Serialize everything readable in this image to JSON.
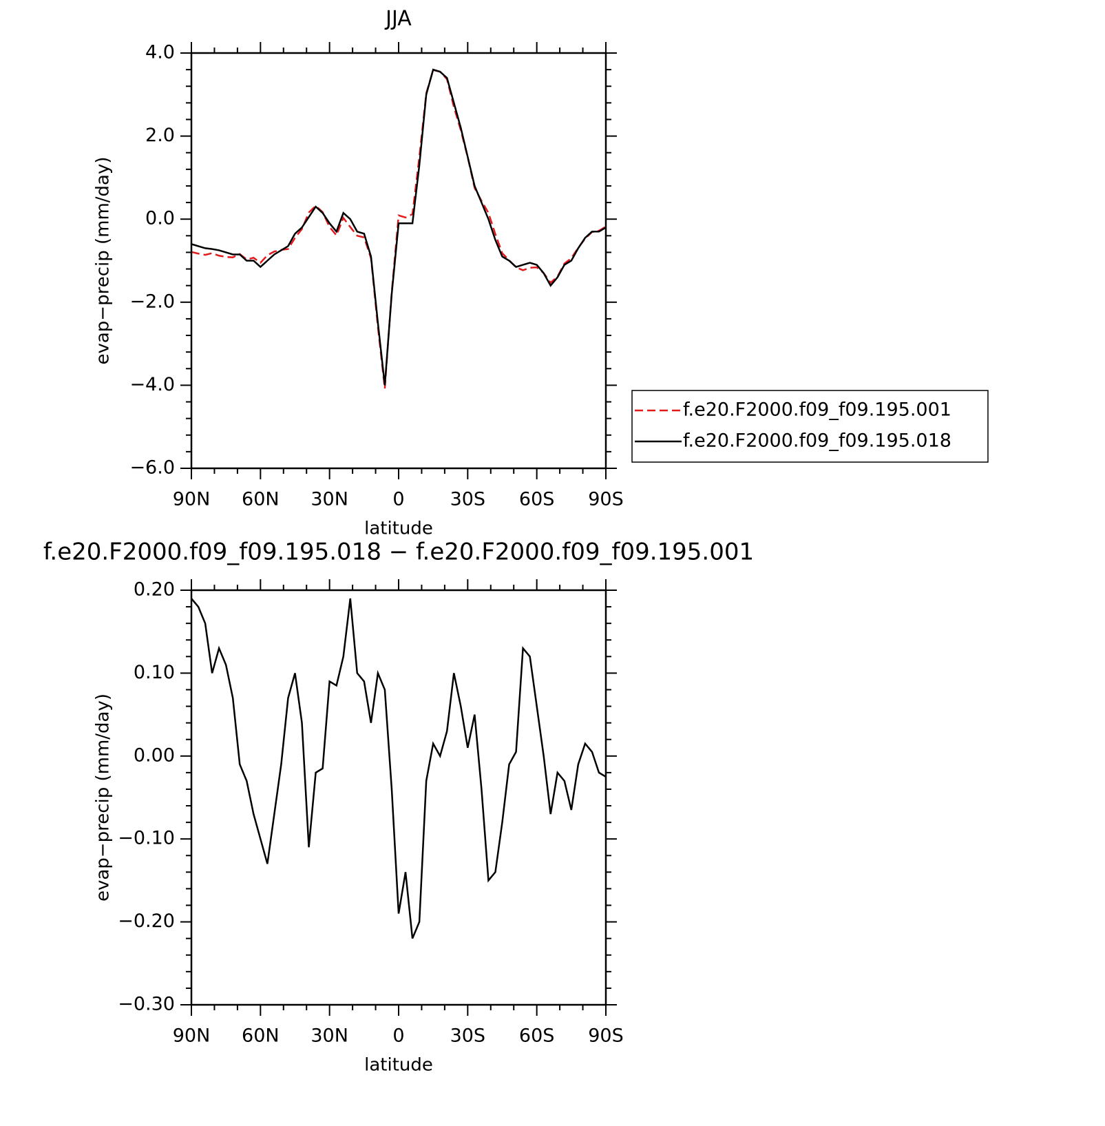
{
  "chart_data": [
    {
      "type": "line",
      "title": "JJA",
      "xlabel": "latitude",
      "ylabel": "evap−precip (mm/day)",
      "x": [
        90,
        87,
        84,
        81,
        78,
        75,
        72,
        69,
        66,
        63,
        60,
        57,
        54,
        51,
        48,
        45,
        42,
        39,
        36,
        33,
        30,
        27,
        24,
        21,
        18,
        15,
        12,
        9,
        6,
        3,
        0,
        -3,
        -6,
        -9,
        -12,
        -15,
        -18,
        -21,
        -24,
        -27,
        -30,
        -33,
        -36,
        -39,
        -42,
        -45,
        -48,
        -51,
        -54,
        -57,
        -60,
        -63,
        -66,
        -69,
        -72,
        -75,
        -78,
        -81,
        -84,
        -87,
        -90
      ],
      "series": [
        {
          "name": "f.e20.F2000.f09_f09.195.001",
          "color": "#e31a1c",
          "dashed": true,
          "values": [
            -0.79,
            -0.83,
            -0.86,
            -0.82,
            -0.88,
            -0.91,
            -0.92,
            -0.84,
            -0.97,
            -0.93,
            -1.05,
            -0.87,
            -0.78,
            -0.74,
            -0.72,
            -0.45,
            -0.24,
            0.16,
            0.32,
            0.17,
            -0.19,
            -0.39,
            0.03,
            -0.19,
            -0.4,
            -0.44,
            -0.94,
            -2.6,
            -4.08,
            -1.76,
            0.09,
            0.04,
            0.12,
            1.5,
            3.03,
            3.59,
            3.55,
            3.37,
            2.7,
            2.14,
            1.49,
            0.75,
            0.44,
            0.15,
            -0.36,
            -0.82,
            -0.99,
            -1.16,
            -1.23,
            -1.17,
            -1.16,
            -1.3,
            -1.53,
            -1.38,
            -1.07,
            -0.94,
            -0.69,
            -0.47,
            -0.31,
            -0.28,
            -0.18
          ]
        },
        {
          "name": "f.e20.F2000.f09_f09.195.018",
          "color": "#000000",
          "dashed": false,
          "values": [
            -0.6,
            -0.65,
            -0.7,
            -0.72,
            -0.75,
            -0.8,
            -0.85,
            -0.85,
            -1.0,
            -1.0,
            -1.15,
            -1.0,
            -0.85,
            -0.75,
            -0.65,
            -0.35,
            -0.2,
            0.05,
            0.3,
            0.15,
            -0.1,
            -0.3,
            0.15,
            0.0,
            -0.3,
            -0.35,
            -0.9,
            -2.5,
            -4.0,
            -1.8,
            -0.1,
            -0.1,
            -0.1,
            1.3,
            3.0,
            3.6,
            3.55,
            3.4,
            2.8,
            2.2,
            1.5,
            0.8,
            0.4,
            0.0,
            -0.5,
            -0.9,
            -1.0,
            -1.15,
            -1.1,
            -1.05,
            -1.1,
            -1.3,
            -1.6,
            -1.4,
            -1.1,
            -1.0,
            -0.7,
            -0.45,
            -0.3,
            -0.3,
            -0.2
          ]
        }
      ],
      "xlim": [
        90,
        -90
      ],
      "xticks": [
        {
          "value": 90,
          "label": "90N"
        },
        {
          "value": 60,
          "label": "60N"
        },
        {
          "value": 30,
          "label": "30N"
        },
        0,
        {
          "value": -30,
          "label": "30S"
        },
        {
          "value": -60,
          "label": "60S"
        },
        {
          "value": -90,
          "label": "90S"
        }
      ],
      "ylim": [
        -6,
        4
      ],
      "yticks": [
        {
          "value": 4,
          "label": "4.0"
        },
        {
          "value": 2,
          "label": "2.0"
        },
        {
          "value": 0,
          "label": "0.0"
        },
        {
          "value": -2,
          "label": "−2.0"
        },
        {
          "value": -4,
          "label": "−4.0"
        },
        {
          "value": -6,
          "label": "−6.0"
        }
      ],
      "legend": "right"
    },
    {
      "type": "line",
      "title": "f.e20.F2000.f09_f09.195.018 − f.e20.F2000.f09_f09.195.001",
      "xlabel": "latitude",
      "ylabel": "evap−precip (mm/day)",
      "x": [
        90,
        87,
        84,
        81,
        78,
        75,
        72,
        69,
        66,
        63,
        60,
        57,
        54,
        51,
        48,
        45,
        42,
        39,
        36,
        33,
        30,
        27,
        24,
        21,
        18,
        15,
        12,
        9,
        6,
        3,
        0,
        -3,
        -6,
        -9,
        -12,
        -15,
        -18,
        -21,
        -24,
        -27,
        -30,
        -33,
        -36,
        -39,
        -42,
        -45,
        -48,
        -51,
        -54,
        -57,
        -60,
        -63,
        -66,
        -69,
        -72,
        -75,
        -78,
        -81,
        -84,
        -87,
        -90
      ],
      "series": [
        {
          "color": "#000000",
          "dashed": false,
          "values": [
            0.19,
            0.18,
            0.16,
            0.1,
            0.13,
            0.11,
            0.07,
            -0.01,
            -0.03,
            -0.07,
            -0.1,
            -0.13,
            -0.07,
            -0.01,
            0.07,
            0.1,
            0.04,
            -0.11,
            -0.02,
            -0.015,
            0.09,
            0.085,
            0.12,
            0.19,
            0.1,
            0.09,
            0.04,
            0.1,
            0.08,
            -0.04,
            -0.19,
            -0.14,
            -0.22,
            -0.2,
            -0.03,
            0.015,
            0.0,
            0.03,
            0.1,
            0.06,
            0.01,
            0.05,
            -0.04,
            -0.15,
            -0.14,
            -0.08,
            -0.01,
            0.005,
            0.13,
            0.12,
            0.06,
            0.0,
            -0.07,
            -0.02,
            -0.03,
            -0.065,
            -0.01,
            0.015,
            0.005,
            -0.02,
            -0.025
          ]
        }
      ],
      "xlim": [
        90,
        -90
      ],
      "xticks": [
        {
          "value": 90,
          "label": "90N"
        },
        {
          "value": 60,
          "label": "60N"
        },
        {
          "value": 30,
          "label": "30N"
        },
        0,
        {
          "value": -30,
          "label": "30S"
        },
        {
          "value": -60,
          "label": "60S"
        },
        {
          "value": -90,
          "label": "90S"
        }
      ],
      "ylim": [
        -0.3,
        0.2
      ],
      "yticks": [
        {
          "value": 0.2,
          "label": "0.20"
        },
        {
          "value": 0.1,
          "label": "0.10"
        },
        {
          "value": 0,
          "label": "0.00"
        },
        {
          "value": -0.1,
          "label": "−0.10"
        },
        {
          "value": -0.2,
          "label": "−0.20"
        },
        {
          "value": -0.3,
          "label": "−0.30"
        }
      ]
    }
  ]
}
